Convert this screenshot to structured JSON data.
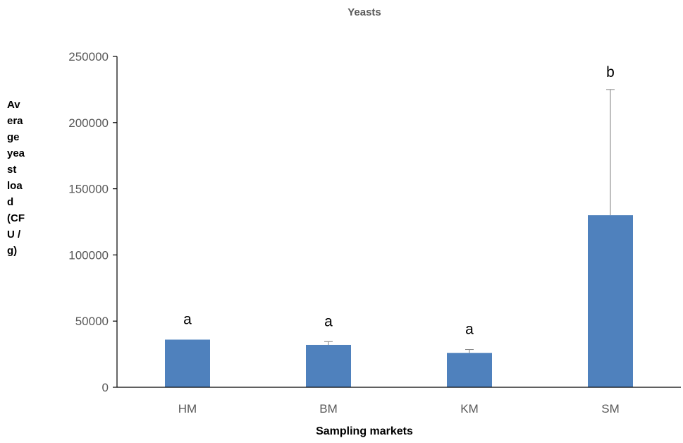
{
  "chart_data": {
    "type": "bar",
    "title": "Yeasts",
    "xlabel": "Sampling markets",
    "ylabel_lines": [
      "Av",
      "era",
      "ge",
      "yea",
      "st",
      "loa",
      "d",
      "(CF",
      "U /",
      "g)"
    ],
    "categories": [
      "HM",
      "BM",
      "KM",
      "SM"
    ],
    "values": [
      36000,
      32000,
      26000,
      130000
    ],
    "error_bar_upper": [
      null,
      34500,
      28500,
      225000
    ],
    "significance_letters": [
      "a",
      "a",
      "a",
      "b"
    ],
    "ylim": [
      0,
      250000
    ],
    "yticks": [
      "0",
      "50000",
      "100000",
      "150000",
      "200000",
      "250000"
    ],
    "ytick_values": [
      0,
      50000,
      100000,
      150000,
      200000,
      250000
    ],
    "bar_color": "#4f81bd",
    "axis_color": "#000000",
    "grid": false,
    "legend": "none"
  }
}
